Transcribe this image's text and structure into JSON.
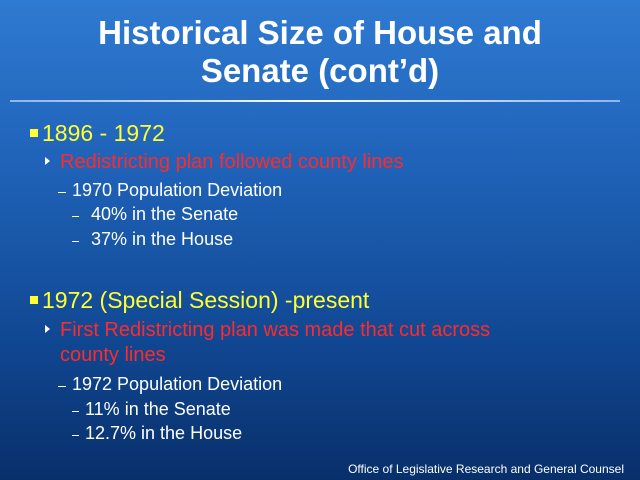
{
  "slide": {
    "title_line1": "Historical Size of House and",
    "title_line2": "Senate (cont’d)",
    "sections": [
      {
        "heading": "1896 - 1972",
        "sub_bullet": "Redistricting plan followed county lines",
        "detail": "1970 Population Deviation",
        "items": [
          "40% in the Senate",
          "37% in the House"
        ]
      },
      {
        "heading": "1972 (Special Session) -present",
        "sub_bullet_line1": "First Redistricting plan was made that cut across",
        "sub_bullet_line2": "county lines",
        "detail": "1972 Population Deviation",
        "items": [
          "11% in the Senate",
          "12.7% in the House"
        ]
      }
    ],
    "footer": "Office of Legislative Research and General Counsel"
  },
  "colors": {
    "title": "#ffffff",
    "level1": "#ffff33",
    "level2": "#ff2a2a",
    "level3": "#ffffff",
    "background_top": "#2f7ad2",
    "background_bottom": "#082f6a"
  }
}
